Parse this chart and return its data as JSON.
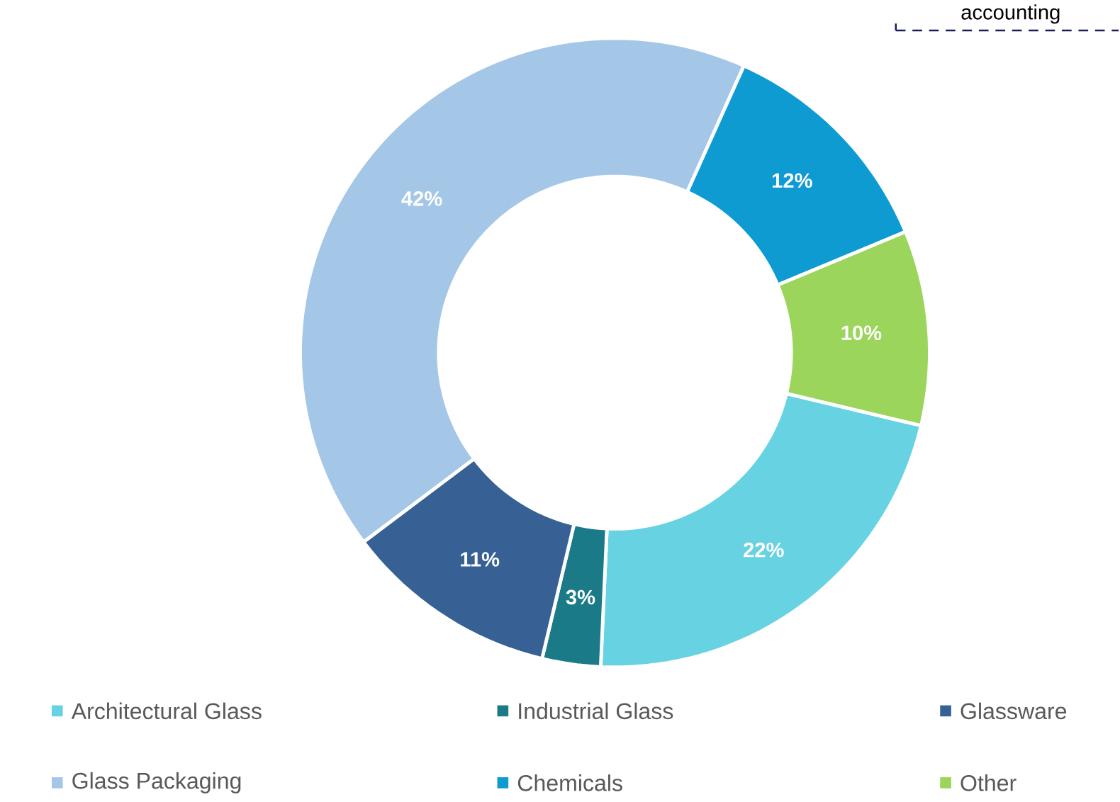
{
  "chart_data": {
    "type": "donut",
    "categories": [
      "Architectural Glass",
      "Industrial Glass",
      "Glassware",
      "Glass Packaging",
      "Chemicals",
      "Other"
    ],
    "values": [
      22,
      3,
      11,
      42,
      12,
      10
    ],
    "colors": [
      "#67d2e2",
      "#1b7a87",
      "#376194",
      "#a4c7e7",
      "#0e9bd1",
      "#9bd55b"
    ],
    "value_labels": [
      "22%",
      "3%",
      "11%",
      "42%",
      "12%",
      "10%"
    ],
    "legend": "bottom",
    "annotations": [
      "accounting"
    ]
  }
}
